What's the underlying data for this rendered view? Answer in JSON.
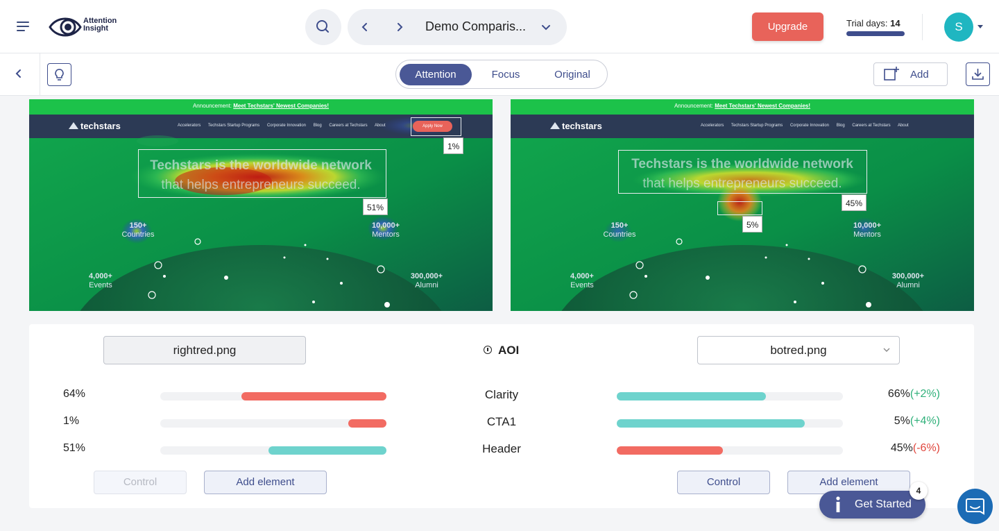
{
  "brand": {
    "name": "Attention\nInsight"
  },
  "header": {
    "project_title": "Demo Comparis...",
    "upgrade_label": "Upgrade",
    "trial_label": "Trial days:",
    "trial_days": "14",
    "avatar_initial": "S"
  },
  "toolbar": {
    "modes": [
      "Attention",
      "Focus",
      "Original"
    ],
    "active_mode": "Attention",
    "add_label": "Add"
  },
  "heatmaps": {
    "announcement": "Announcement:",
    "announcement_link": "Meet Techstars' Newest Companies!",
    "site_logo": "techstars",
    "nav_items": [
      "Accelerators",
      "Techstars Startup Programs",
      "Corporate Innovation",
      "Blog",
      "Careers at Techstars",
      "About"
    ],
    "apply_label": "Apply Now",
    "headline_1": "Techstars is the worldwide network",
    "headline_2": "that helps entrepreneurs succeed.",
    "stats": [
      {
        "value": "150+",
        "label": "Countries"
      },
      {
        "value": "10,000+",
        "label": "Mentors"
      },
      {
        "value": "4,000+",
        "label": "Events"
      },
      {
        "value": "300,000+",
        "label": "Alumni"
      }
    ],
    "left": {
      "cta_pct": "1%",
      "header_pct": "51%"
    },
    "right": {
      "cta_pct": "5%",
      "header_pct": "45%"
    }
  },
  "comparison": {
    "left_file": "rightred.png",
    "aoi_title": "AOI",
    "right_file": "botred.png",
    "rows": [
      {
        "name": "Clarity",
        "left_value": "64%",
        "left_fill": 0.64,
        "left_color": "#f26b62",
        "right_value": "66%",
        "right_delta": "(+2%)",
        "right_delta_sign": "pos",
        "right_fill": 0.66,
        "right_color": "#6ed3cd"
      },
      {
        "name": "CTA1",
        "left_value": "1%",
        "left_fill": 0.17,
        "left_color": "#f26b62",
        "right_value": "5%",
        "right_delta": "(+4%)",
        "right_delta_sign": "pos",
        "right_fill": 0.83,
        "right_color": "#6ed3cd"
      },
      {
        "name": "Header",
        "left_value": "51%",
        "left_fill": 0.52,
        "left_color": "#6ed3cd",
        "right_value": "45%",
        "right_delta": "(-6%)",
        "right_delta_sign": "neg",
        "right_fill": 0.47,
        "right_color": "#f26b62"
      }
    ],
    "left_buttons": {
      "control": "Control",
      "add_element": "Add element"
    },
    "right_buttons": {
      "control": "Control",
      "add_element": "Add element"
    }
  },
  "get_started": {
    "label": "Get Started",
    "badge": "4"
  }
}
